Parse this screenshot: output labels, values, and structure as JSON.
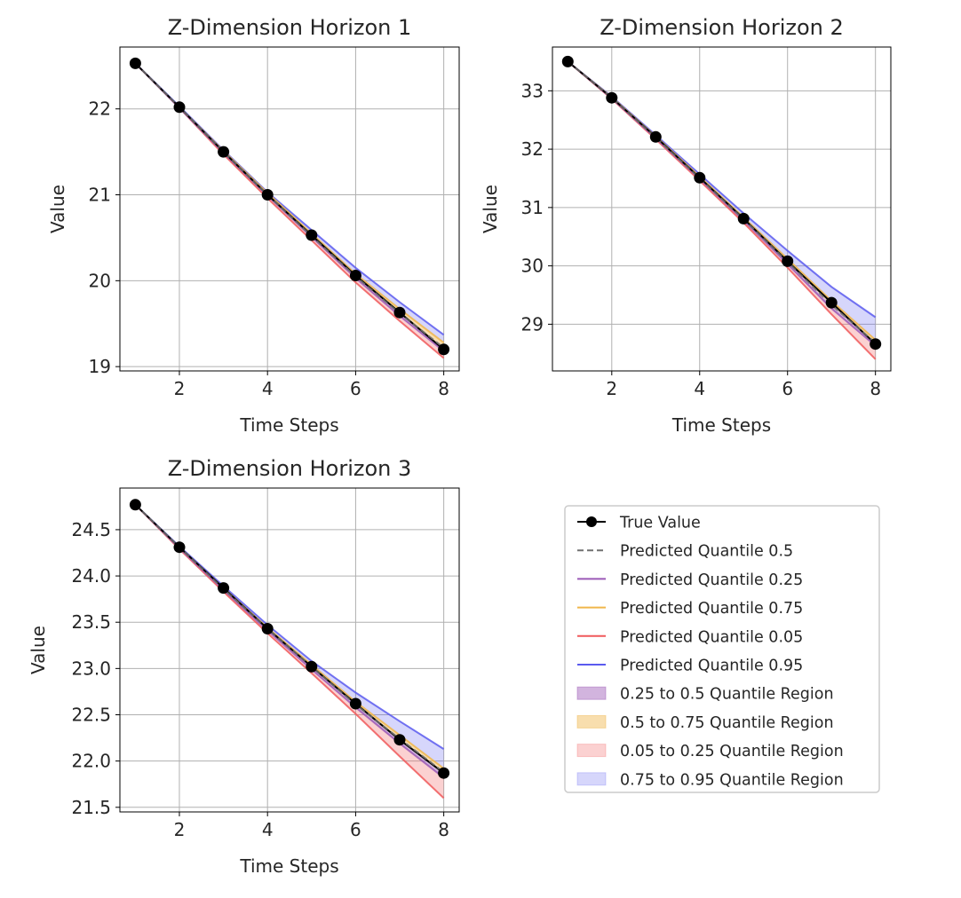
{
  "figure": {
    "legend": {
      "placement": "lower-right empty panel",
      "entries": [
        {
          "label": "True Value",
          "kind": "marker-line",
          "color": "#000000"
        },
        {
          "label": "Predicted Quantile 0.5",
          "kind": "dashed-line",
          "color": "#707070"
        },
        {
          "label": "Predicted Quantile 0.25",
          "kind": "line",
          "color": "#9b59b6"
        },
        {
          "label": "Predicted Quantile 0.75",
          "kind": "line",
          "color": "#f0b64b"
        },
        {
          "label": "Predicted Quantile 0.05",
          "kind": "line",
          "color": "#f0595b"
        },
        {
          "label": "Predicted Quantile 0.95",
          "kind": "line",
          "color": "#5a5aef"
        },
        {
          "label": "0.25 to 0.5 Quantile Region",
          "kind": "patch",
          "color": "#cbb0d6"
        },
        {
          "label": "0.5 to 0.75 Quantile Region",
          "kind": "patch",
          "color": "#f8dfa6"
        },
        {
          "label": "0.05 to 0.25 Quantile Region",
          "kind": "patch",
          "color": "#f8cccc"
        },
        {
          "label": "0.75 to 0.95 Quantile Region",
          "kind": "patch",
          "color": "#d2d2fa"
        }
      ]
    }
  },
  "chart_data": [
    {
      "type": "line",
      "title": "Z-Dimension Horizon 1",
      "xlabel": "Time Steps",
      "ylabel": "Value",
      "x": [
        1,
        2,
        3,
        4,
        5,
        6,
        7,
        8
      ],
      "xlim": [
        0.65,
        8.35
      ],
      "ylim": [
        18.95,
        22.72
      ],
      "xticks": [
        2,
        4,
        6,
        8
      ],
      "yticks": [
        19,
        20,
        21,
        22
      ],
      "grid": true,
      "series": [
        {
          "name": "True Value",
          "values": [
            22.53,
            22.02,
            21.5,
            21.0,
            20.53,
            20.06,
            19.63,
            19.2
          ]
        },
        {
          "name": "Predicted Quantile 0.5",
          "values": [
            22.53,
            22.02,
            21.5,
            21.0,
            20.52,
            20.05,
            19.62,
            19.22
          ]
        },
        {
          "name": "Predicted Quantile 0.25",
          "values": [
            22.53,
            22.01,
            21.49,
            20.99,
            20.51,
            20.03,
            19.59,
            19.18
          ]
        },
        {
          "name": "Predicted Quantile 0.75",
          "values": [
            22.53,
            22.02,
            21.51,
            21.02,
            20.55,
            20.08,
            19.67,
            19.28
          ]
        },
        {
          "name": "Predicted Quantile 0.05",
          "values": [
            22.53,
            22.01,
            21.47,
            20.96,
            20.47,
            19.98,
            19.53,
            19.1
          ]
        },
        {
          "name": "Predicted Quantile 0.95",
          "values": [
            22.53,
            22.03,
            21.52,
            21.03,
            20.59,
            20.15,
            19.75,
            19.37
          ]
        }
      ]
    },
    {
      "type": "line",
      "title": "Z-Dimension Horizon 2",
      "xlabel": "Time Steps",
      "ylabel": "Value",
      "x": [
        1,
        2,
        3,
        4,
        5,
        6,
        7,
        8
      ],
      "xlim": [
        0.65,
        8.35
      ],
      "ylim": [
        28.2,
        33.75
      ],
      "xticks": [
        2,
        4,
        6,
        8
      ],
      "yticks": [
        29,
        30,
        31,
        32,
        33
      ],
      "grid": true,
      "series": [
        {
          "name": "True Value",
          "values": [
            33.5,
            32.88,
            32.21,
            31.51,
            30.81,
            30.08,
            29.37,
            28.66
          ]
        },
        {
          "name": "Predicted Quantile 0.5",
          "values": [
            33.5,
            32.88,
            32.2,
            31.5,
            30.8,
            30.07,
            29.33,
            28.68
          ]
        },
        {
          "name": "Predicted Quantile 0.25",
          "values": [
            33.5,
            32.87,
            32.19,
            31.49,
            30.78,
            30.03,
            29.27,
            28.63
          ]
        },
        {
          "name": "Predicted Quantile 0.75",
          "values": [
            33.5,
            32.89,
            32.22,
            31.53,
            30.83,
            30.12,
            29.4,
            28.73
          ]
        },
        {
          "name": "Predicted Quantile 0.05",
          "values": [
            33.5,
            32.86,
            32.17,
            31.46,
            30.74,
            29.97,
            29.17,
            28.4
          ]
        },
        {
          "name": "Predicted Quantile 0.95",
          "values": [
            33.5,
            32.9,
            32.24,
            31.57,
            30.9,
            30.26,
            29.64,
            29.12
          ]
        }
      ]
    },
    {
      "type": "line",
      "title": "Z-Dimension Horizon 3",
      "xlabel": "Time Steps",
      "ylabel": "Value",
      "x": [
        1,
        2,
        3,
        4,
        5,
        6,
        7,
        8
      ],
      "xlim": [
        0.65,
        8.35
      ],
      "ylim": [
        21.45,
        24.95
      ],
      "xticks": [
        2,
        4,
        6,
        8
      ],
      "yticks": [
        21.5,
        22.0,
        22.5,
        23.0,
        23.5,
        24.0,
        24.5
      ],
      "yticklabels": [
        "21.5",
        "22.0",
        "22.5",
        "23.0",
        "23.5",
        "24.0",
        "24.5"
      ],
      "grid": true,
      "series": [
        {
          "name": "True Value",
          "values": [
            24.77,
            24.31,
            23.87,
            23.43,
            23.02,
            22.62,
            22.23,
            21.87
          ]
        },
        {
          "name": "Predicted Quantile 0.5",
          "values": [
            24.77,
            24.31,
            23.86,
            23.43,
            23.02,
            22.61,
            22.24,
            21.88
          ]
        },
        {
          "name": "Predicted Quantile 0.25",
          "values": [
            24.77,
            24.3,
            23.85,
            23.41,
            22.99,
            22.58,
            22.19,
            21.82
          ]
        },
        {
          "name": "Predicted Quantile 0.75",
          "values": [
            24.77,
            24.31,
            23.87,
            23.44,
            23.04,
            22.64,
            22.28,
            21.92
          ]
        },
        {
          "name": "Predicted Quantile 0.05",
          "values": [
            24.77,
            24.29,
            23.83,
            23.38,
            22.95,
            22.51,
            22.05,
            21.6
          ]
        },
        {
          "name": "Predicted Quantile 0.95",
          "values": [
            24.77,
            24.32,
            23.89,
            23.47,
            23.08,
            22.74,
            22.43,
            22.13
          ]
        }
      ]
    }
  ]
}
